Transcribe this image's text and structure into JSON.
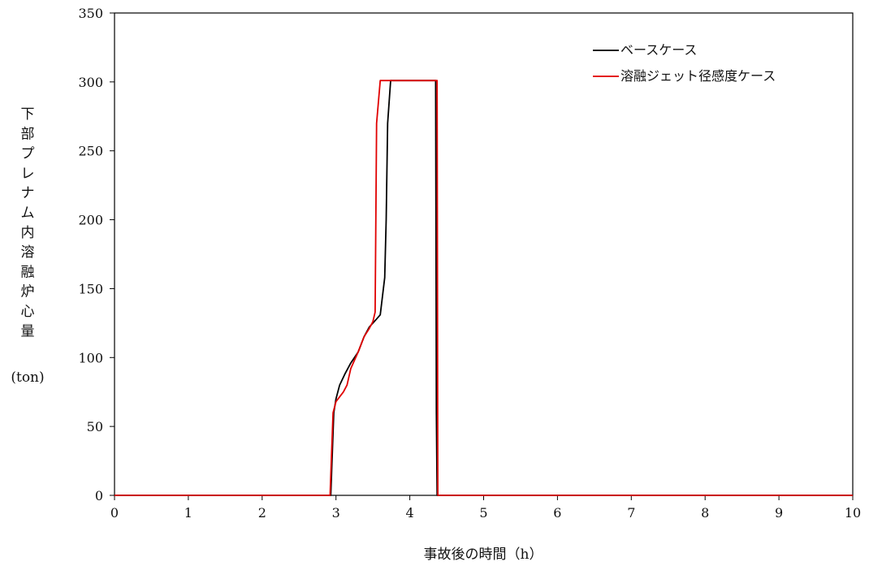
{
  "chart_data": {
    "type": "line",
    "title": "",
    "xlabel": "事故後の時間（h）",
    "ylabel_lines": [
      "下",
      "部",
      "プ",
      "レ",
      "ナ",
      "ム",
      "内",
      "溶",
      "融",
      "炉",
      "心",
      "量"
    ],
    "ylabel_unit": "(ton)",
    "xlim": [
      0,
      10
    ],
    "ylim": [
      0,
      350
    ],
    "xticks": [
      "0",
      "1",
      "2",
      "3",
      "4",
      "5",
      "6",
      "7",
      "8",
      "9",
      "10"
    ],
    "yticks": [
      "0",
      "50",
      "100",
      "150",
      "200",
      "250",
      "300",
      "350"
    ],
    "grid": false,
    "legend_position": "top-right",
    "series": [
      {
        "name": "ベースケース",
        "color": "#000000",
        "points": [
          [
            0,
            0
          ],
          [
            2.93,
            0
          ],
          [
            2.97,
            60
          ],
          [
            3.0,
            70
          ],
          [
            3.05,
            80
          ],
          [
            3.12,
            88
          ],
          [
            3.2,
            96
          ],
          [
            3.3,
            104
          ],
          [
            3.38,
            115
          ],
          [
            3.45,
            122
          ],
          [
            3.55,
            128
          ],
          [
            3.6,
            131
          ],
          [
            3.66,
            158
          ],
          [
            3.68,
            200
          ],
          [
            3.7,
            270
          ],
          [
            3.74,
            301
          ],
          [
            4.35,
            301
          ],
          [
            4.36,
            60
          ],
          [
            4.37,
            0
          ],
          [
            10,
            0
          ]
        ]
      },
      {
        "name": "溶融ジェット径感度ケース",
        "color": "#e00000",
        "points": [
          [
            0,
            0
          ],
          [
            2.92,
            0
          ],
          [
            2.96,
            60
          ],
          [
            3.0,
            68
          ],
          [
            3.1,
            75
          ],
          [
            3.15,
            80
          ],
          [
            3.2,
            92
          ],
          [
            3.3,
            104
          ],
          [
            3.38,
            115
          ],
          [
            3.45,
            121
          ],
          [
            3.5,
            126
          ],
          [
            3.53,
            133
          ],
          [
            3.55,
            270
          ],
          [
            3.6,
            301
          ],
          [
            4.37,
            301
          ],
          [
            4.38,
            0
          ],
          [
            10,
            0
          ]
        ]
      }
    ]
  }
}
